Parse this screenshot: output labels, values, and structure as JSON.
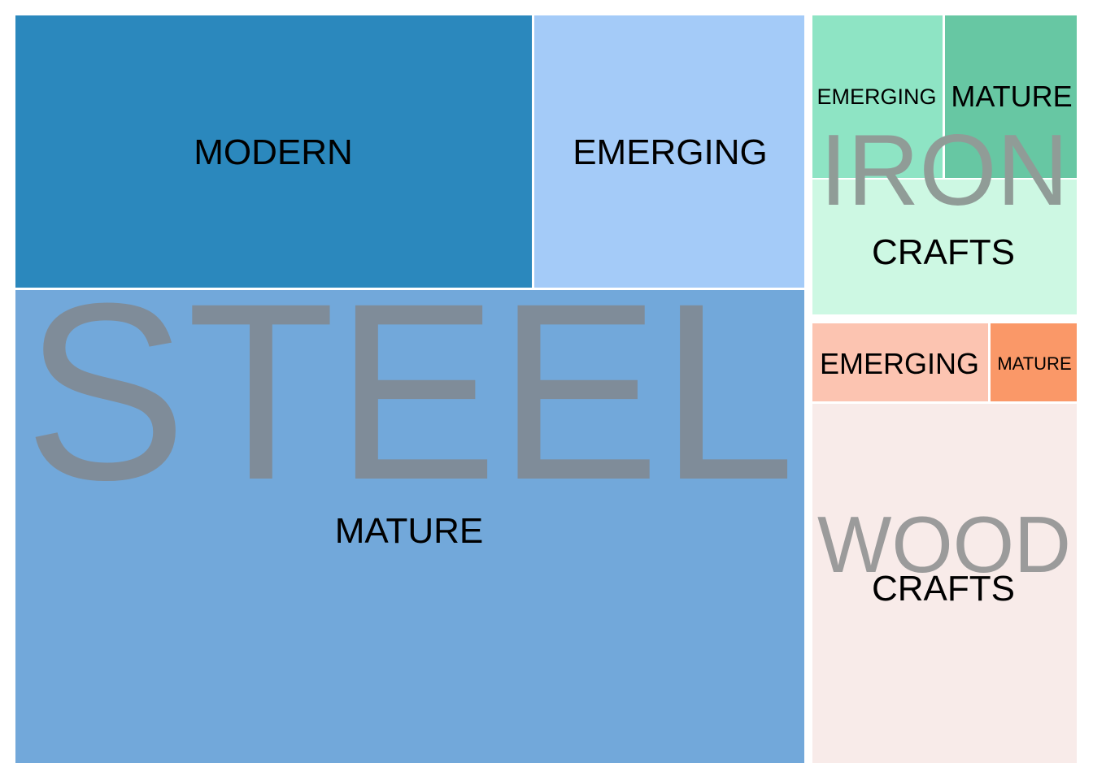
{
  "chart_data": {
    "type": "treemap",
    "groups": [
      {
        "name": "STEEL",
        "label_color": "#7f8c99",
        "children": [
          {
            "name": "MODERN",
            "value": 215000,
            "color": "#2b88bd"
          },
          {
            "name": "EMERGING",
            "value": 113000,
            "color": "#a4cbf8"
          },
          {
            "name": "MATURE",
            "value": 572000,
            "color": "#72a8da"
          }
        ]
      },
      {
        "name": "IRON",
        "label_color": "#909c97",
        "children": [
          {
            "name": "EMERGING",
            "value": 32500,
            "color": "#8ee4c4"
          },
          {
            "name": "MATURE",
            "value": 32500,
            "color": "#67c7a3"
          },
          {
            "name": "CRAFTS",
            "value": 34000,
            "color": "#cdf8e3"
          }
        ]
      },
      {
        "name": "WOOD",
        "label_color": "#9b9b9b",
        "children": [
          {
            "name": "EMERGING",
            "value": 20700,
            "color": "#fcc4b1"
          },
          {
            "name": "MATURE",
            "value": 9600,
            "color": "#fa9868"
          },
          {
            "name": "CRAFTS",
            "value": 86800,
            "color": "#f8ebe9"
          }
        ]
      }
    ]
  }
}
